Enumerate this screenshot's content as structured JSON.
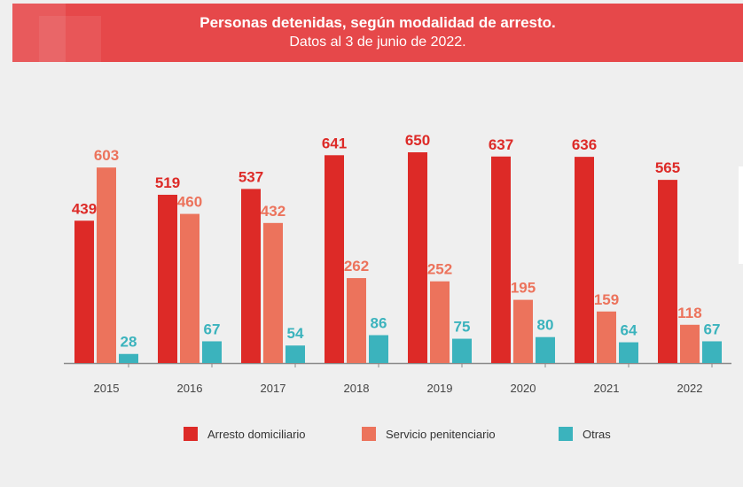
{
  "header": {
    "title": "Personas detenidas, según modalidad de arresto.",
    "subtitle": "Datos al 3 de junio de 2022."
  },
  "chart_data": {
    "type": "bar",
    "title": "Personas detenidas, según modalidad de arresto.",
    "subtitle": "Datos al 3 de junio de 2022.",
    "xlabel": "",
    "ylabel": "",
    "ylim": [
      0,
      650
    ],
    "grid": false,
    "legend_position": "bottom",
    "categories": [
      "2015",
      "2016",
      "2017",
      "2018",
      "2019",
      "2020",
      "2021",
      "2022"
    ],
    "series": [
      {
        "name": "Arresto domiciliario",
        "color": "#dd2a27",
        "values": [
          439,
          519,
          537,
          641,
          650,
          637,
          636,
          565
        ]
      },
      {
        "name": "Servicio penitenciario",
        "color": "#ec735c",
        "values": [
          603,
          460,
          432,
          262,
          252,
          195,
          159,
          118
        ]
      },
      {
        "name": "Otras",
        "color": "#3bb3bd",
        "values": [
          28,
          67,
          54,
          86,
          75,
          80,
          64,
          67
        ]
      }
    ]
  }
}
